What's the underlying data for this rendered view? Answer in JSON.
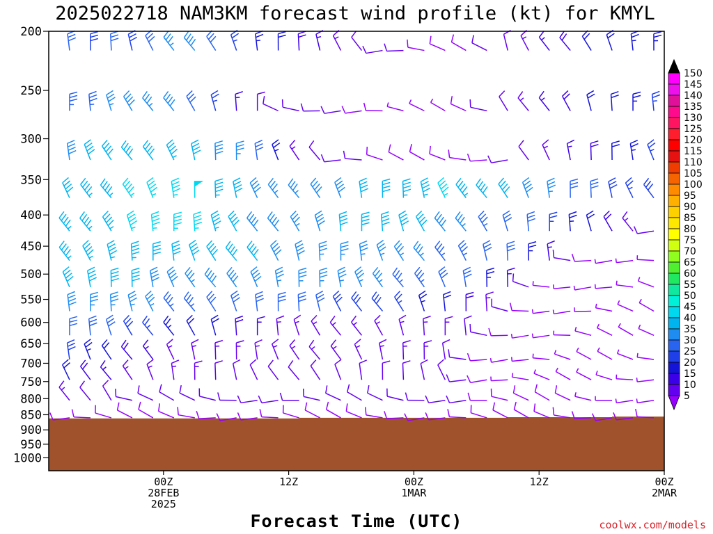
{
  "chart_data": {
    "type": "wind-barb profile (time-height)",
    "title": "2025022718 NAM3KM forecast wind profile (kt) for KMYL",
    "xlabel": "Forecast Time (UTC)",
    "ylabel": "",
    "y_scale": "log (pressure, hPa)",
    "y_range": [
      1050,
      200
    ],
    "y_ticks": [
      200,
      250,
      300,
      350,
      400,
      450,
      500,
      550,
      600,
      650,
      700,
      750,
      800,
      850,
      900,
      950,
      1000
    ],
    "x_range_hours": [
      -5,
      54
    ],
    "x_ticks": [
      {
        "hour": 6,
        "lines": [
          "00Z",
          "28FEB",
          "2025"
        ]
      },
      {
        "hour": 18,
        "lines": [
          "12Z"
        ]
      },
      {
        "hour": 30,
        "lines": [
          "00Z",
          "1MAR"
        ]
      },
      {
        "hour": 42,
        "lines": [
          "12Z"
        ]
      },
      {
        "hour": 54,
        "lines": [
          "00Z",
          "2MAR"
        ]
      }
    ],
    "time_step_hours": 2,
    "levels_hpa": [
      215,
      270,
      325,
      375,
      425,
      475,
      525,
      575,
      630,
      690,
      745,
      805,
      860
    ],
    "ground_pressure_hpa": [
      [
        -5,
        862
      ],
      [
        19,
        862
      ],
      [
        19,
        860
      ],
      [
        39,
        860
      ],
      [
        39,
        858
      ],
      [
        49,
        858
      ],
      [
        49,
        856
      ],
      [
        58,
        856
      ]
    ],
    "colorbar": {
      "unit": "kt",
      "labels": [
        150,
        145,
        140,
        135,
        130,
        125,
        120,
        115,
        110,
        105,
        100,
        95,
        90,
        85,
        80,
        75,
        70,
        65,
        60,
        55,
        50,
        45,
        40,
        35,
        30,
        25,
        20,
        15,
        10,
        5
      ],
      "colors": [
        "#ff00ff",
        "#ee11ee",
        "#e0109a",
        "#ff0a8c",
        "#ff1462",
        "#ff1e2e",
        "#ff0000",
        "#e61212",
        "#f03c00",
        "#f56400",
        "#ff8c00",
        "#ffb000",
        "#ffd000",
        "#ffe800",
        "#ffff00",
        "#d0ff10",
        "#90ff20",
        "#50f030",
        "#20e860",
        "#10e8a0",
        "#00f0d8",
        "#00d8f0",
        "#00b4f0",
        "#1e8cf0",
        "#2864f0",
        "#1f40e8",
        "#1414d8",
        "#3c00e8",
        "#6400f0",
        "#9600ff"
      ]
    },
    "wind_rows": [
      {
        "hpa": 215,
        "speed": [
          30,
          32,
          28,
          30,
          28,
          30,
          35,
          38,
          32,
          25,
          24,
          20,
          18,
          15,
          14,
          12,
          11,
          10,
          9,
          8,
          8,
          10,
          12,
          14,
          16,
          18,
          20,
          22,
          24,
          24,
          25,
          25
        ]
      },
      {
        "hpa": 270,
        "speed": [
          32,
          33,
          34,
          36,
          38,
          36,
          38,
          32,
          25,
          15,
          12,
          11,
          10,
          10,
          10,
          9,
          8,
          7,
          6,
          6,
          8,
          10,
          12,
          14,
          16,
          18,
          20,
          22,
          24,
          26,
          26,
          28
        ]
      },
      {
        "hpa": 325,
        "speed": [
          35,
          38,
          40,
          42,
          40,
          42,
          44,
          40,
          38,
          35,
          30,
          24,
          14,
          12,
          10,
          10,
          9,
          9,
          8,
          8,
          8,
          9,
          10,
          12,
          14,
          16,
          18,
          22,
          24,
          25,
          28,
          30
        ]
      },
      {
        "hpa": 375,
        "speed": [
          40,
          42,
          44,
          44,
          45,
          46,
          46,
          48,
          44,
          40,
          38,
          36,
          35,
          38,
          38,
          40,
          42,
          44,
          44,
          45,
          44,
          42,
          40,
          38,
          36,
          32,
          30,
          28,
          26,
          28,
          30,
          32
        ]
      },
      {
        "hpa": 425,
        "speed": [
          42,
          44,
          44,
          44,
          45,
          45,
          46,
          46,
          44,
          40,
          38,
          38,
          36,
          38,
          40,
          42,
          42,
          40,
          40,
          38,
          36,
          34,
          32,
          30,
          26,
          24,
          20,
          18,
          14,
          10,
          8,
          32
        ]
      },
      {
        "hpa": 475,
        "speed": [
          42,
          44,
          44,
          44,
          44,
          42,
          42,
          40,
          40,
          40,
          40,
          38,
          38,
          36,
          36,
          36,
          36,
          35,
          35,
          34,
          34,
          32,
          30,
          24,
          16,
          10,
          8,
          5,
          4,
          3,
          3,
          30
        ]
      },
      {
        "hpa": 525,
        "speed": [
          40,
          40,
          40,
          40,
          40,
          38,
          38,
          36,
          38,
          38,
          38,
          36,
          36,
          36,
          36,
          35,
          35,
          34,
          34,
          32,
          30,
          24,
          16,
          10,
          6,
          5,
          4,
          4,
          3,
          3,
          3,
          28
        ]
      },
      {
        "hpa": 575,
        "speed": [
          38,
          38,
          36,
          36,
          36,
          36,
          34,
          34,
          32,
          30,
          30,
          30,
          30,
          30,
          28,
          28,
          28,
          26,
          24,
          22,
          18,
          14,
          10,
          8,
          6,
          5,
          4,
          4,
          3,
          3,
          3,
          3
        ]
      },
      {
        "hpa": 630,
        "speed": [
          34,
          32,
          30,
          30,
          28,
          26,
          24,
          22,
          20,
          18,
          16,
          14,
          14,
          14,
          14,
          14,
          14,
          14,
          14,
          14,
          12,
          10,
          8,
          6,
          5,
          4,
          4,
          3,
          3,
          3,
          3,
          3
        ]
      },
      {
        "hpa": 690,
        "speed": [
          30,
          28,
          24,
          20,
          18,
          16,
          14,
          14,
          14,
          14,
          14,
          14,
          14,
          14,
          14,
          14,
          14,
          14,
          14,
          12,
          10,
          8,
          6,
          6,
          6,
          5,
          5,
          4,
          4,
          3,
          3,
          3
        ]
      },
      {
        "hpa": 745,
        "speed": [
          26,
          22,
          18,
          16,
          14,
          14,
          14,
          14,
          12,
          12,
          12,
          12,
          12,
          12,
          12,
          12,
          12,
          12,
          12,
          12,
          10,
          8,
          6,
          5,
          5,
          4,
          4,
          4,
          3,
          3,
          3,
          3
        ]
      },
      {
        "hpa": 805,
        "speed": [
          18,
          14,
          12,
          12,
          10,
          10,
          10,
          10,
          10,
          10,
          10,
          10,
          10,
          10,
          10,
          10,
          10,
          10,
          10,
          10,
          10,
          9,
          8,
          8,
          8,
          8,
          7,
          6,
          6,
          6,
          6,
          6
        ]
      },
      {
        "hpa": 860,
        "speed": [
          10,
          9,
          8,
          8,
          8,
          8,
          8,
          8,
          8,
          8,
          8,
          8,
          8,
          8,
          8,
          8,
          8,
          8,
          8,
          8,
          8,
          8,
          8,
          8,
          8,
          8,
          8,
          8,
          8,
          8,
          8,
          8
        ]
      }
    ]
  },
  "credit": "coolwx.com/models"
}
